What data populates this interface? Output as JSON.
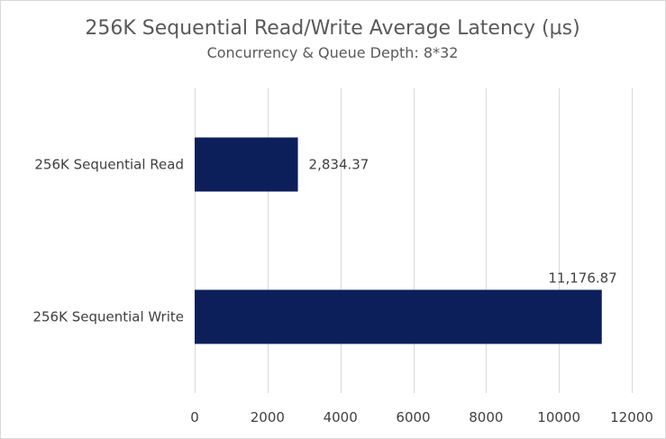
{
  "chart_data": {
    "type": "bar",
    "orientation": "horizontal",
    "title": "256K Sequential Read/Write Average Latency (µs)",
    "subtitle": "Concurrency & Queue Depth: 8*32",
    "categories": [
      "256K Sequential Read",
      "256K Sequential Write"
    ],
    "values": [
      2834.37,
      11176.87
    ],
    "data_labels": [
      "2,834.37",
      "11,176.87"
    ],
    "xlim": [
      0,
      12000
    ],
    "xticks": [
      0,
      2000,
      4000,
      6000,
      8000,
      10000,
      12000
    ],
    "xtick_labels": [
      "0",
      "2000",
      "4000",
      "6000",
      "8000",
      "10000",
      "12000"
    ],
    "xlabel": "",
    "ylabel": "",
    "grid": true,
    "legend": "none",
    "bar_color": "#0c1f5a"
  }
}
